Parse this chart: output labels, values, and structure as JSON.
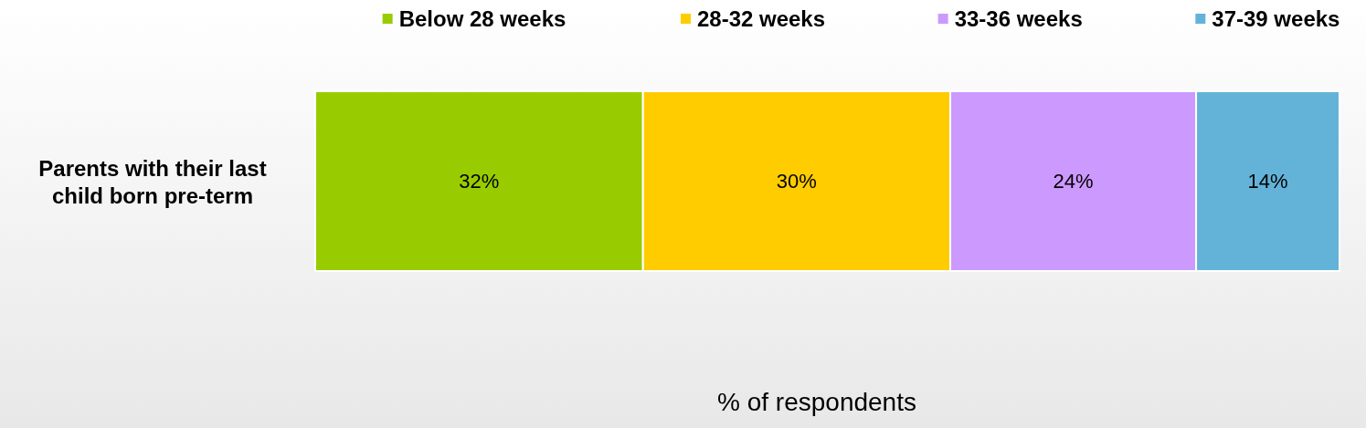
{
  "chart_data": {
    "type": "bar",
    "orientation": "horizontal",
    "stacked": true,
    "categories": [
      "Parents with their last child born pre-term"
    ],
    "xlabel": "% of respondents",
    "legend": "top",
    "series": [
      {
        "name": "Below 28 weeks",
        "color": "#99cc00",
        "values": [
          32
        ],
        "value_labels": [
          "32%"
        ]
      },
      {
        "name": "28-32 weeks",
        "color": "#ffcc00",
        "values": [
          30
        ],
        "value_labels": [
          "30%"
        ]
      },
      {
        "name": "33-36 weeks",
        "color": "#cc99ff",
        "values": [
          24
        ],
        "value_labels": [
          "24%"
        ]
      },
      {
        "name": "37-39 weeks",
        "color": "#63b3d9",
        "values": [
          14
        ],
        "value_labels": [
          "14%"
        ]
      }
    ]
  }
}
